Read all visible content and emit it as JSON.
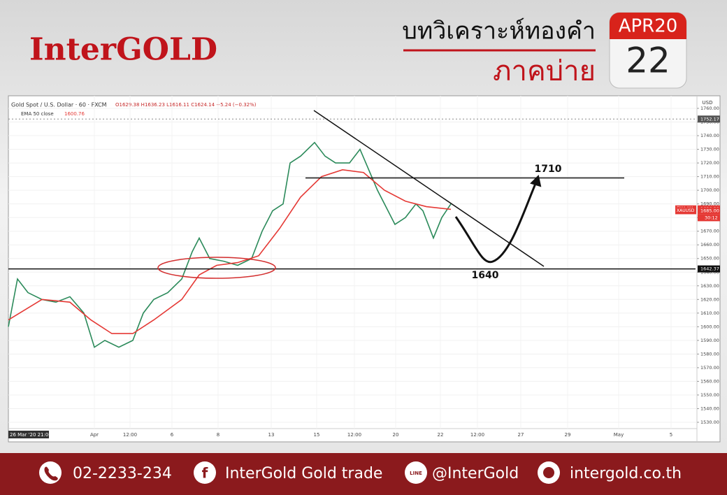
{
  "header": {
    "logo": "InterGOLD",
    "title": "บทวิเคราะห์ทองคำ",
    "subtitle": "ภาคบ่าย",
    "month": "APR20",
    "day": "22"
  },
  "footer": {
    "phone": "02-2233-234",
    "facebook": "InterGold Gold trade",
    "line": "@InterGold",
    "website": "intergold.co.th"
  },
  "chart_data": {
    "type": "line",
    "title": "Gold Spot / U.S. Dollar · 60 · FXCM",
    "ohlc": "O1629.38 H1636.23 L1616.11 C1624.14 −5.24 (−0.32%)",
    "indicator": "EMA 50 close",
    "indicator_value": "1600.76",
    "currency": "USD",
    "cursor_label": "26 Mar '20  21:00",
    "countdown": "30:12",
    "xlim": [
      0,
      983
    ],
    "xticks": [
      {
        "value": 123,
        "label": "Apr"
      },
      {
        "value": 174,
        "label": "12:00"
      },
      {
        "value": 234,
        "label": "6"
      },
      {
        "value": 300,
        "label": "8"
      },
      {
        "value": 376,
        "label": "13"
      },
      {
        "value": 441,
        "label": "15"
      },
      {
        "value": 495,
        "label": "12:00"
      },
      {
        "value": 554,
        "label": "20"
      },
      {
        "value": 618,
        "label": "22"
      },
      {
        "value": 671,
        "label": "12:00"
      },
      {
        "value": 733,
        "label": "27"
      },
      {
        "value": 800,
        "label": "29"
      },
      {
        "value": 873,
        "label": "May"
      },
      {
        "value": 948,
        "label": "5"
      }
    ],
    "ylim": [
      1530,
      1760
    ],
    "yticks": [
      {
        "value": 1530,
        "label": "1530.00"
      },
      {
        "value": 1540,
        "label": "1540.00"
      },
      {
        "value": 1550,
        "label": "1550.00"
      },
      {
        "value": 1560,
        "label": "1560.00"
      },
      {
        "value": 1570,
        "label": "1570.00"
      },
      {
        "value": 1580,
        "label": "1580.00"
      },
      {
        "value": 1590,
        "label": "1590.00"
      },
      {
        "value": 1600,
        "label": "1600.00"
      },
      {
        "value": 1610,
        "label": "1610.00"
      },
      {
        "value": 1620,
        "label": "1620.00"
      },
      {
        "value": 1630,
        "label": "1630.00"
      },
      {
        "value": 1640,
        "label": "1640.00"
      },
      {
        "value": 1650,
        "label": "1650.00"
      },
      {
        "value": 1660,
        "label": "1660.00"
      },
      {
        "value": 1670,
        "label": "1670.00"
      },
      {
        "value": 1680,
        "label": "1680.00"
      },
      {
        "value": 1690,
        "label": "1690.00"
      },
      {
        "value": 1700,
        "label": "1700.00"
      },
      {
        "value": 1710,
        "label": "1710.00"
      },
      {
        "value": 1720,
        "label": "1720.00"
      },
      {
        "value": 1730,
        "label": "1730.00"
      },
      {
        "value": 1740,
        "label": "1740.00"
      },
      {
        "value": 1750,
        "label": "1750.00"
      },
      {
        "value": 1760,
        "label": "1760.00"
      }
    ],
    "series": [
      {
        "color": "#2b8a5a",
        "x": [
          0,
          13,
          28,
          48,
          68,
          88,
          108,
          123,
          138,
          158,
          178,
          193,
          208,
          228,
          248,
          263,
          273,
          288,
          308,
          328,
          348,
          363,
          378,
          393,
          403,
          418,
          438,
          453,
          468,
          488,
          503,
          513,
          528,
          538,
          553,
          568,
          583,
          593,
          608,
          620,
          633
        ],
        "values": [
          1600,
          1635,
          1625,
          1620,
          1618,
          1622,
          1610,
          1585,
          1590,
          1585,
          1590,
          1610,
          1620,
          1625,
          1635,
          1655,
          1665,
          1650,
          1648,
          1645,
          1650,
          1670,
          1685,
          1690,
          1720,
          1725,
          1735,
          1725,
          1720,
          1720,
          1730,
          1718,
          1700,
          1690,
          1675,
          1680,
          1690,
          1685,
          1665,
          1680,
          1690
        ]
      },
      {
        "color": "#e53935",
        "x": [
          0,
          48,
          88,
          118,
          148,
          178,
          208,
          248,
          273,
          298,
          328,
          358,
          388,
          418,
          448,
          478,
          508,
          538,
          568,
          598,
          633
        ],
        "values": [
          1605,
          1620,
          1618,
          1605,
          1595,
          1595,
          1605,
          1620,
          1638,
          1645,
          1647,
          1652,
          1672,
          1695,
          1710,
          1715,
          1713,
          1700,
          1692,
          1688,
          1686
        ]
      }
    ],
    "levels": [
      {
        "value": 1709,
        "from": 425,
        "to": 881
      },
      {
        "value": 1642.37,
        "from": 0,
        "to": 983
      }
    ],
    "annotations": [
      "1710",
      "1640"
    ],
    "markers": {
      "names": [
        null,
        "EMA,MA",
        "XAUUSD",
        null
      ],
      "values": [
        1752.17,
        1686.38,
        1685,
        1642.37
      ],
      "value_labels": [
        "1752.17",
        "1686.38",
        "1685.00",
        "1642.37"
      ],
      "colors": [
        "#555",
        "#e53935",
        "#e53935",
        "#111"
      ]
    }
  }
}
